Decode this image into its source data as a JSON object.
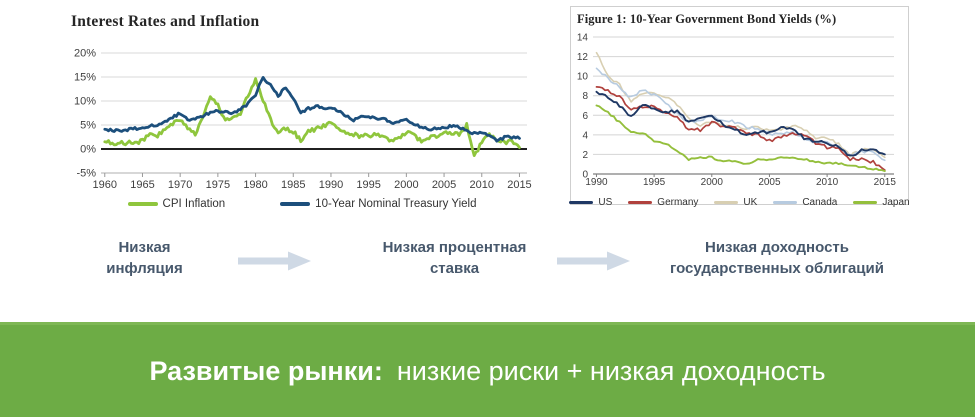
{
  "flow": {
    "steps": [
      {
        "lines": [
          "Низкая",
          "инфляция"
        ]
      },
      {
        "lines": [
          "Низкая процентная",
          "ставка"
        ]
      },
      {
        "lines": [
          "Низкая доходность",
          "государственных облигаций"
        ]
      }
    ],
    "text_color": "#47586c",
    "arrow_color": "#cfd9e5"
  },
  "banner": {
    "bold_text": "Развитые рынки:",
    "normal_text": "низкие риски + низкая доходность",
    "background_color": "#6dac45",
    "text_color": "#ffffff"
  },
  "chart_data": [
    {
      "type": "line",
      "title": "Interest Rates and Inflation",
      "xlim": [
        1959.5,
        2016
      ],
      "xticks": [
        1960,
        1965,
        1970,
        1975,
        1980,
        1985,
        1990,
        1995,
        2000,
        2005,
        2010,
        2015
      ],
      "ylim": [
        -5,
        20
      ],
      "ytick_values": [
        -5,
        0,
        5,
        10,
        15,
        20
      ],
      "ytick_labels": [
        "-5%",
        "0%",
        "5%",
        "10%",
        "15%",
        "20%"
      ],
      "zero_line": 0,
      "axis_line": -5,
      "grid": true,
      "legend_position": "bottom",
      "years": [
        1960,
        1961,
        1962,
        1963,
        1964,
        1965,
        1966,
        1967,
        1968,
        1969,
        1970,
        1971,
        1972,
        1973,
        1974,
        1975,
        1976,
        1977,
        1978,
        1979,
        1980,
        1981,
        1982,
        1983,
        1984,
        1985,
        1986,
        1987,
        1988,
        1989,
        1990,
        1991,
        1992,
        1993,
        1994,
        1995,
        1996,
        1997,
        1998,
        1999,
        2000,
        2001,
        2002,
        2003,
        2004,
        2005,
        2006,
        2007,
        2008,
        2009,
        2010,
        2011,
        2012,
        2013,
        2014,
        2015
      ],
      "series": [
        {
          "name": "CPI Inflation",
          "color": "#8fc63d",
          "values": [
            1.5,
            1.1,
            1.2,
            1.3,
            1.3,
            1.6,
            3.0,
            2.8,
            4.2,
            5.4,
            5.9,
            4.3,
            3.3,
            6.2,
            11.0,
            9.1,
            5.8,
            6.5,
            7.6,
            11.3,
            14.3,
            10.3,
            6.1,
            3.2,
            4.3,
            3.6,
            1.9,
            3.7,
            4.1,
            4.8,
            5.4,
            4.2,
            3.0,
            3.0,
            2.6,
            2.8,
            3.0,
            2.3,
            1.6,
            2.2,
            3.4,
            2.8,
            1.6,
            2.3,
            2.7,
            3.4,
            3.2,
            2.9,
            4.9,
            -1.6,
            1.6,
            3.2,
            2.1,
            1.5,
            1.6,
            0.3
          ]
        },
        {
          "name": "10-Year Nominal Treasury Yield",
          "color": "#1c4f7c",
          "values": [
            4.1,
            3.9,
            3.9,
            4.0,
            4.2,
            4.3,
            4.9,
            5.1,
            5.6,
            6.7,
            7.4,
            6.2,
            6.2,
            6.8,
            7.6,
            8.0,
            7.6,
            7.4,
            8.4,
            9.4,
            11.4,
            15.0,
            13.2,
            11.1,
            12.8,
            10.6,
            7.7,
            8.4,
            8.9,
            8.5,
            8.6,
            7.9,
            7.0,
            5.9,
            7.1,
            6.6,
            6.4,
            6.4,
            5.3,
            5.6,
            6.0,
            5.0,
            4.6,
            4.0,
            4.3,
            4.3,
            4.8,
            4.6,
            3.7,
            3.3,
            3.2,
            2.8,
            1.8,
            2.4,
            2.5,
            2.2
          ]
        }
      ]
    },
    {
      "type": "line",
      "title": "Figure 1: 10-Year Government Bond Yields (%)",
      "xlim": [
        1989.7,
        2015.8
      ],
      "xticks": [
        1990,
        1995,
        2000,
        2005,
        2010,
        2015
      ],
      "ylim": [
        0,
        14
      ],
      "ytick_values": [
        0,
        2,
        4,
        6,
        8,
        10,
        12,
        14
      ],
      "ytick_labels": [
        "0",
        "2",
        "4",
        "6",
        "8",
        "10",
        "12",
        "14"
      ],
      "axis_line": 0,
      "grid": true,
      "legend_position": "bottom",
      "years": [
        1990,
        1991,
        1992,
        1993,
        1994,
        1995,
        1996,
        1997,
        1998,
        1999,
        2000,
        2001,
        2002,
        2003,
        2004,
        2005,
        2006,
        2007,
        2008,
        2009,
        2010,
        2011,
        2012,
        2013,
        2014,
        2015
      ],
      "series": [
        {
          "name": "US",
          "color": "#1f3864",
          "values": [
            8.4,
            7.9,
            7.0,
            5.9,
            7.1,
            6.6,
            6.4,
            6.4,
            5.3,
            5.6,
            6.0,
            5.0,
            4.6,
            4.0,
            4.3,
            4.3,
            4.8,
            4.6,
            3.7,
            3.3,
            3.2,
            2.8,
            1.8,
            2.4,
            2.5,
            2.0
          ]
        },
        {
          "name": "Germany",
          "color": "#b0413d",
          "values": [
            8.9,
            8.5,
            7.9,
            6.5,
            6.9,
            6.9,
            6.2,
            5.7,
            4.6,
            4.5,
            5.3,
            4.8,
            4.8,
            4.1,
            4.0,
            3.4,
            3.8,
            4.2,
            4.0,
            3.2,
            2.7,
            2.6,
            1.5,
            1.6,
            1.2,
            0.4
          ]
        },
        {
          "name": "UK",
          "color": "#d8cfb2",
          "values": [
            12.4,
            10.1,
            9.1,
            7.5,
            8.2,
            8.2,
            7.9,
            7.1,
            5.6,
            5.0,
            5.3,
            4.9,
            4.9,
            4.5,
            4.9,
            4.4,
            4.5,
            5.0,
            4.6,
            3.6,
            3.6,
            3.1,
            1.9,
            2.4,
            2.6,
            1.7
          ]
        },
        {
          "name": "Canada",
          "color": "#b7cbe0",
          "values": [
            10.8,
            9.8,
            8.8,
            7.8,
            8.6,
            8.1,
            7.2,
            6.1,
            5.3,
            5.5,
            5.9,
            5.5,
            5.3,
            4.8,
            4.6,
            4.1,
            4.2,
            4.3,
            3.6,
            3.3,
            3.2,
            2.8,
            1.9,
            2.3,
            2.2,
            1.4
          ]
        },
        {
          "name": "Japan",
          "color": "#94bf3c",
          "values": [
            7.0,
            6.3,
            5.3,
            4.3,
            4.2,
            3.4,
            3.1,
            2.4,
            1.5,
            1.7,
            1.7,
            1.3,
            1.3,
            1.0,
            1.5,
            1.4,
            1.7,
            1.7,
            1.5,
            1.3,
            1.1,
            1.1,
            0.8,
            0.7,
            0.5,
            0.3
          ]
        }
      ]
    }
  ]
}
